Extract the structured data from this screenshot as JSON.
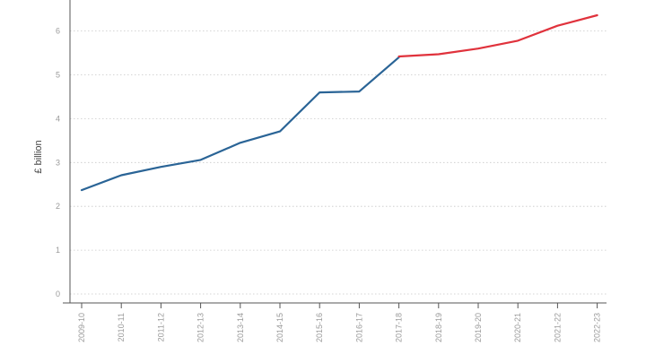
{
  "chart_data": {
    "type": "line",
    "title": "",
    "xlabel": "",
    "ylabel": "£ billion",
    "ylim": [
      0,
      6.4
    ],
    "y_ticks": [
      0,
      1,
      2,
      3,
      4,
      5,
      6
    ],
    "grid": "horizontal-dotted",
    "legend": "none",
    "categories": [
      "2009-10",
      "2010-11",
      "2011-12",
      "2012-13",
      "2013-14",
      "2014-15",
      "2015-16",
      "2016-17",
      "2017-18",
      "2018-19",
      "2019-20",
      "2020-21",
      "2021-22",
      "2022-23"
    ],
    "series": [
      {
        "color": "#2a6496",
        "values": [
          2.37,
          2.71,
          2.9,
          3.06,
          3.45,
          3.71,
          4.6,
          4.62,
          5.4,
          null,
          null,
          null,
          null,
          null
        ]
      },
      {
        "color": "#e0323c",
        "values": [
          null,
          null,
          null,
          null,
          null,
          null,
          null,
          null,
          5.42,
          5.47,
          5.6,
          5.78,
          6.12,
          6.36
        ]
      }
    ]
  }
}
